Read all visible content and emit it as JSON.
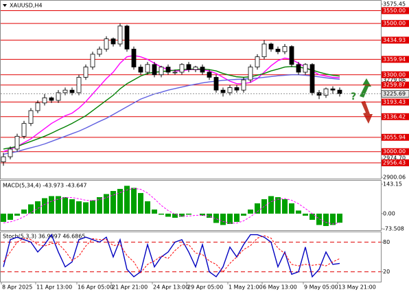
{
  "chart_data": [
    {
      "type": "candlestick",
      "title": "XAUUSD,H4",
      "annotation": "?",
      "categories": [
        "8 Apr 2025",
        null,
        null,
        null,
        null,
        "11 Apr 13:00",
        null,
        null,
        null,
        null,
        null,
        "16 Apr 05:00",
        null,
        null,
        null,
        null,
        "21 Apr 21:00",
        null,
        null,
        null,
        null,
        null,
        "24 Apr 13:00",
        null,
        null,
        null,
        null,
        "29 Apr 05:00",
        null,
        null,
        null,
        null,
        null,
        "1 May 21:00",
        null,
        null,
        null,
        null,
        "6 May 13:00",
        null,
        null,
        null,
        null,
        null,
        "9 May 05:00",
        null,
        null,
        null,
        null,
        "13 May 21:00"
      ],
      "open": [
        2960,
        2980,
        3010,
        3060,
        3110,
        3160,
        3190,
        3210,
        3200,
        3230,
        3240,
        3230,
        3290,
        3330,
        3380,
        3400,
        3440,
        3420,
        3490,
        3400,
        3330,
        3310,
        3340,
        3300,
        3330,
        3310,
        3310,
        3340,
        3320,
        3330,
        3310,
        3290,
        3240,
        3230,
        3250,
        3240,
        3280,
        3330,
        3370,
        3420,
        3400,
        3390,
        3410,
        3340,
        3310,
        3340,
        3230,
        3220,
        3245,
        3240
      ],
      "high": [
        2995,
        3020,
        3070,
        3120,
        3170,
        3200,
        3225,
        3215,
        3240,
        3250,
        3250,
        3300,
        3340,
        3390,
        3410,
        3450,
        3445,
        3500,
        3495,
        3410,
        3340,
        3350,
        3350,
        3335,
        3340,
        3320,
        3345,
        3350,
        3335,
        3340,
        3320,
        3300,
        3250,
        3260,
        3260,
        3290,
        3340,
        3380,
        3435,
        3425,
        3410,
        3420,
        3415,
        3350,
        3345,
        3345,
        3240,
        3250,
        3255,
        3250
      ],
      "low": [
        2945,
        2970,
        3000,
        3050,
        3100,
        3150,
        3180,
        3190,
        3190,
        3220,
        3220,
        3220,
        3280,
        3320,
        3370,
        3390,
        3410,
        3410,
        3390,
        3320,
        3300,
        3300,
        3290,
        3290,
        3300,
        3300,
        3300,
        3310,
        3310,
        3300,
        3280,
        3230,
        3215,
        3220,
        3230,
        3230,
        3270,
        3320,
        3360,
        3390,
        3380,
        3380,
        3330,
        3300,
        3300,
        3220,
        3205,
        3210,
        3225,
        3215
      ],
      "close": [
        2980,
        3010,
        3060,
        3110,
        3160,
        3190,
        3210,
        3200,
        3230,
        3240,
        3230,
        3290,
        3330,
        3380,
        3400,
        3440,
        3420,
        3490,
        3400,
        3330,
        3310,
        3340,
        3300,
        3330,
        3310,
        3310,
        3340,
        3320,
        3330,
        3310,
        3290,
        3240,
        3230,
        3250,
        3240,
        3280,
        3330,
        3370,
        3420,
        3400,
        3390,
        3410,
        3340,
        3310,
        3340,
        3230,
        3220,
        3245,
        3240,
        3225.69
      ],
      "lines": [
        {
          "color": "#ff00ff",
          "values": [
            3000,
            3010,
            3020,
            3035,
            3050,
            3070,
            3090,
            3110,
            3125,
            3140,
            3150,
            3170,
            3195,
            3225,
            3255,
            3285,
            3310,
            3345,
            3370,
            3375,
            3370,
            3360,
            3345,
            3330,
            3320,
            3315,
            3315,
            3320,
            3320,
            3320,
            3315,
            3305,
            3290,
            3275,
            3265,
            3265,
            3270,
            3285,
            3310,
            3335,
            3355,
            3365,
            3360,
            3345,
            3330,
            3315,
            3300,
            3295,
            3290,
            3288
          ]
        },
        {
          "color": "#008000",
          "values": [
            3010,
            3015,
            3020,
            3030,
            3040,
            3050,
            3060,
            3072,
            3085,
            3097,
            3110,
            3125,
            3140,
            3160,
            3180,
            3200,
            3220,
            3245,
            3265,
            3280,
            3295,
            3305,
            3310,
            3312,
            3315,
            3318,
            3320,
            3322,
            3322,
            3322,
            3320,
            3315,
            3305,
            3298,
            3292,
            3290,
            3292,
            3298,
            3305,
            3315,
            3322,
            3330,
            3332,
            3330,
            3325,
            3318,
            3310,
            3303,
            3298,
            3295
          ]
        },
        {
          "color": "#6060e0",
          "values": [
            2990,
            2995,
            3000,
            3008,
            3015,
            3022,
            3030,
            3040,
            3050,
            3060,
            3070,
            3080,
            3092,
            3105,
            3118,
            3130,
            3145,
            3160,
            3175,
            3190,
            3205,
            3215,
            3225,
            3232,
            3240,
            3246,
            3252,
            3258,
            3263,
            3268,
            3272,
            3275,
            3278,
            3280,
            3282,
            3283,
            3285,
            3287,
            3290,
            3293,
            3296,
            3298,
            3300,
            3300,
            3298,
            3295,
            3292,
            3288,
            3285,
            3282
          ]
        }
      ],
      "levels": [
        {
          "value": 3550,
          "label": "3550.00"
        },
        {
          "value": 3500,
          "label": "3500.00"
        },
        3434.93,
        3359.94,
        {
          "value": 3300,
          "label": "3300.00"
        },
        3259.87,
        3193.43,
        3136.42,
        3055.94,
        {
          "value": 3000,
          "label": "3000.00"
        },
        2956.43
      ],
      "level_color": "#e00000",
      "last_price": 3225.69,
      "ylim": [
        2900.06,
        3575.45
      ],
      "yticks": [
        3575.45,
        3279.06,
        {
          "value": 2974.7,
          "label": "2974.70"
        },
        2900.06
      ]
    },
    {
      "type": "macd",
      "title": "MACD(5,34,4) -43.973 -43.647",
      "color": "#00a000",
      "signal_color": "#ff00ff",
      "values": [
        -40,
        -30,
        -10,
        20,
        45,
        60,
        75,
        85,
        85,
        80,
        70,
        60,
        55,
        65,
        80,
        95,
        110,
        120,
        135,
        125,
        100,
        60,
        20,
        -5,
        -15,
        -20,
        -15,
        -5,
        0,
        -10,
        -20,
        -45,
        -55,
        -50,
        -40,
        -10,
        20,
        50,
        70,
        85,
        80,
        70,
        50,
        15,
        -10,
        -30,
        -55,
        -60,
        -55,
        -43.973
      ],
      "signal": [
        -45,
        -40,
        -30,
        -15,
        5,
        25,
        45,
        60,
        70,
        78,
        78,
        72,
        65,
        63,
        68,
        78,
        90,
        102,
        115,
        122,
        118,
        100,
        72,
        40,
        15,
        -3,
        -12,
        -12,
        -8,
        -8,
        -12,
        -25,
        -38,
        -46,
        -46,
        -35,
        -15,
        10,
        35,
        58,
        70,
        73,
        65,
        48,
        25,
        0,
        -25,
        -42,
        -50,
        -43.647
      ],
      "ylim": [
        -73.508,
        143.15
      ],
      "yticks": [
        143.15,
        {
          "value": 0,
          "label": "0.00"
        },
        -73.508
      ]
    },
    {
      "type": "stochastic",
      "title": "Stoch(5,3,3) 36.9097 46.6865",
      "series": [
        {
          "color": "#0000c0",
          "values": [
            30,
            85,
            90,
            85,
            80,
            60,
            75,
            95,
            60,
            30,
            40,
            85,
            90,
            85,
            80,
            90,
            50,
            85,
            25,
            10,
            20,
            75,
            30,
            50,
            60,
            80,
            85,
            60,
            30,
            75,
            20,
            10,
            30,
            70,
            50,
            75,
            95,
            95,
            90,
            80,
            30,
            60,
            15,
            20,
            70,
            10,
            25,
            60,
            35,
            36.9097
          ]
        },
        {
          "color": "#ff0000",
          "dashed": true,
          "values": [
            40,
            60,
            80,
            88,
            85,
            75,
            72,
            77,
            77,
            62,
            43,
            52,
            72,
            87,
            85,
            85,
            73,
            75,
            53,
            40,
            18,
            35,
            42,
            52,
            47,
            63,
            75,
            75,
            58,
            55,
            42,
            35,
            20,
            37,
            50,
            65,
            73,
            88,
            93,
            88,
            68,
            57,
            35,
            32,
            35,
            33,
            35,
            32,
            40,
            46.6865
          ]
        }
      ],
      "ylim": [
        0,
        100
      ],
      "yticks": [
        80,
        20
      ],
      "grid": true,
      "grid_color": "#e00000",
      "grid_style": "dashed"
    }
  ]
}
